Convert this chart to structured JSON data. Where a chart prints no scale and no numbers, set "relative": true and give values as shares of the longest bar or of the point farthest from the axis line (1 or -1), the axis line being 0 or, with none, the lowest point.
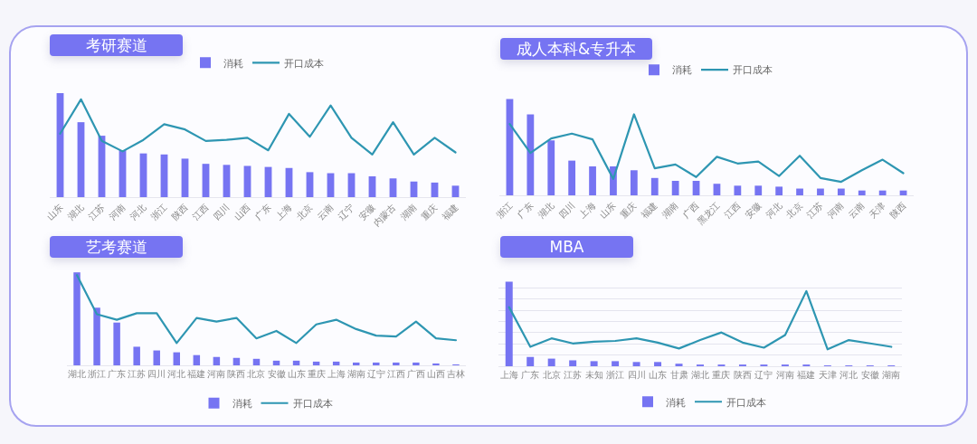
{
  "chart_data": [
    {
      "type": "bar",
      "title": "考研赛道",
      "relative": true,
      "legend": "top",
      "categories": [
        "山东",
        "湖北",
        "江苏",
        "河南",
        "河北",
        "浙江",
        "陕西",
        "江西",
        "四川",
        "山西",
        "广东",
        "上海",
        "北京",
        "云南",
        "辽宁",
        "安徽",
        "内蒙古",
        "湖南",
        "重庆",
        "福建"
      ],
      "series": [
        {
          "name": "消耗",
          "color": "#7674f2",
          "values": [
            1,
            0.72,
            0.59,
            0.45,
            0.42,
            0.41,
            0.37,
            0.32,
            0.31,
            0.3,
            0.29,
            0.28,
            0.24,
            0.23,
            0.23,
            0.2,
            0.18,
            0.15,
            0.14,
            0.11
          ]
        },
        {
          "name": "开口成本",
          "type": "line",
          "color": "#2e96b2",
          "values": [
            0.61,
            0.94,
            0.54,
            0.44,
            0.55,
            0.7,
            0.65,
            0.54,
            0.55,
            0.57,
            0.45,
            0.8,
            0.58,
            0.88,
            0.57,
            0.41,
            0.72,
            0.41,
            0.57,
            0.43
          ]
        }
      ]
    },
    {
      "type": "bar",
      "title": "成人本科&专升本",
      "relative": true,
      "legend": "top",
      "categories": [
        "浙江",
        "广东",
        "湖北",
        "四川",
        "上海",
        "山东",
        "重庆",
        "福建",
        "湖南",
        "广西",
        "黑龙江",
        "江西",
        "安徽",
        "河北",
        "北京",
        "江苏",
        "河南",
        "云南",
        "天津",
        "陕西"
      ],
      "series": [
        {
          "name": "消耗",
          "color": "#7674f2",
          "values": [
            1,
            0.84,
            0.57,
            0.36,
            0.3,
            0.3,
            0.26,
            0.18,
            0.15,
            0.15,
            0.12,
            0.1,
            0.1,
            0.09,
            0.07,
            0.07,
            0.07,
            0.05,
            0.05,
            0.05
          ]
        },
        {
          "name": "开口成本",
          "type": "line",
          "color": "#2e96b2",
          "values": [
            0.74,
            0.44,
            0.59,
            0.64,
            0.58,
            0.17,
            0.84,
            0.28,
            0.32,
            0.19,
            0.4,
            0.33,
            0.35,
            0.2,
            0.41,
            0.18,
            0.14,
            0.26,
            0.37,
            0.23
          ]
        }
      ]
    },
    {
      "type": "bar",
      "title": "艺考赛道",
      "relative": true,
      "legend": "bottom",
      "categories": [
        "湖北",
        "浙江",
        "广东",
        "江苏",
        "四川",
        "河北",
        "福建",
        "河南",
        "陕西",
        "北京",
        "安徽",
        "山东",
        "重庆",
        "上海",
        "湖南",
        "辽宁",
        "江西",
        "广西",
        "山西",
        "吉林"
      ],
      "series": [
        {
          "name": "消耗",
          "color": "#7674f2",
          "values": [
            1,
            0.62,
            0.46,
            0.2,
            0.16,
            0.14,
            0.11,
            0.09,
            0.08,
            0.07,
            0.05,
            0.05,
            0.04,
            0.04,
            0.03,
            0.03,
            0.03,
            0.03,
            0.02,
            0.01
          ]
        },
        {
          "name": "开口成本",
          "type": "line",
          "color": "#2e96b2",
          "values": [
            0.97,
            0.55,
            0.49,
            0.56,
            0.56,
            0.24,
            0.51,
            0.47,
            0.51,
            0.29,
            0.37,
            0.24,
            0.44,
            0.49,
            0.39,
            0.32,
            0.31,
            0.47,
            0.29,
            0.27
          ]
        }
      ]
    },
    {
      "type": "bar",
      "title": "MBA",
      "relative": true,
      "legend": "bottom",
      "grid": "y",
      "categories": [
        "上海",
        "广东",
        "北京",
        "江苏",
        "未知",
        "浙江",
        "四川",
        "山东",
        "甘肃",
        "湖北",
        "重庆",
        "陕西",
        "辽宁",
        "河南",
        "福建",
        "天津",
        "河北",
        "安徽",
        "湖南"
      ],
      "series": [
        {
          "name": "消耗",
          "color": "#7674f2",
          "values": [
            1,
            0.11,
            0.09,
            0.07,
            0.06,
            0.06,
            0.05,
            0.05,
            0.03,
            0.02,
            0.02,
            0.02,
            0.02,
            0.02,
            0.02,
            0.01,
            0.01,
            0.01,
            0.01
          ]
        },
        {
          "name": "开口成本",
          "type": "line",
          "color": "#2e96b2",
          "values": [
            0.7,
            0.23,
            0.33,
            0.27,
            0.29,
            0.3,
            0.33,
            0.28,
            0.21,
            0.31,
            0.4,
            0.28,
            0.22,
            0.37,
            0.89,
            0.2,
            0.31,
            0.27,
            0.23
          ]
        }
      ]
    }
  ]
}
